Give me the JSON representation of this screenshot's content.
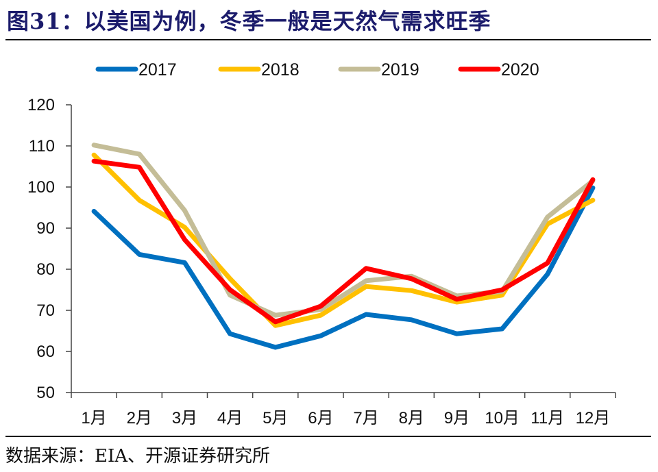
{
  "title": "图31：以美国为例，冬季一般是天然气需求旺季",
  "source": "数据来源：EIA、开源证券研究所",
  "chart_data": {
    "type": "line",
    "title": "图31：以美国为例，冬季一般是天然气需求旺季",
    "xlabel": "",
    "ylabel": "",
    "categories": [
      "1月",
      "2月",
      "3月",
      "4月",
      "5月",
      "6月",
      "7月",
      "8月",
      "9月",
      "10月",
      "11月",
      "12月"
    ],
    "ylim": [
      50,
      120
    ],
    "yticks": [
      "50",
      "60",
      "70",
      "80",
      "90",
      "100",
      "110",
      "120"
    ],
    "ytick_values": [
      50,
      60,
      70,
      80,
      90,
      100,
      110,
      120
    ],
    "grid": false,
    "legend_position": "top-center",
    "series": [
      {
        "name": "2017",
        "color": "#0070c0",
        "values": [
          94.1,
          83.6,
          81.6,
          64.3,
          61.0,
          63.8,
          69.0,
          67.7,
          64.3,
          65.5,
          78.8,
          99.8
        ]
      },
      {
        "name": "2018",
        "color": "#ffc000",
        "values": [
          107.8,
          96.8,
          90.2,
          77.7,
          66.3,
          68.8,
          75.8,
          74.8,
          72.0,
          73.7,
          91.0,
          96.8
        ]
      },
      {
        "name": "2019",
        "color": "#c4bd97",
        "values": [
          110.2,
          108.0,
          94.3,
          73.7,
          68.8,
          70.2,
          77.2,
          78.3,
          73.5,
          74.6,
          92.7,
          101.5
        ]
      },
      {
        "name": "2020",
        "color": "#ff0000",
        "values": [
          106.3,
          104.8,
          87.2,
          75.0,
          67.2,
          71.0,
          80.2,
          77.7,
          72.7,
          75.0,
          81.5,
          101.8
        ]
      }
    ]
  }
}
